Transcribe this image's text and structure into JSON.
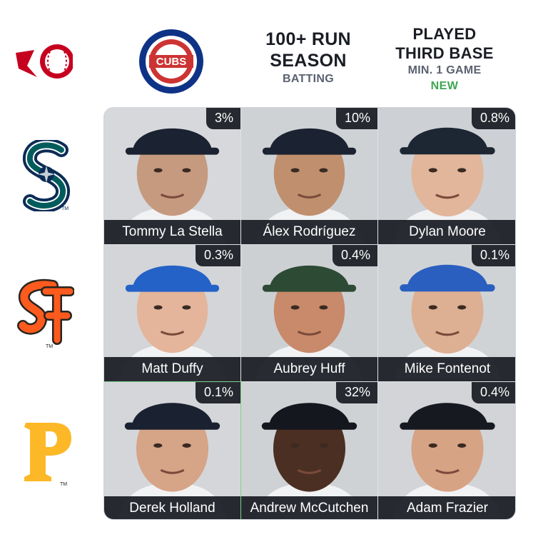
{
  "headers": {
    "col1_team": "Chicago Cubs",
    "col1_logo_text": "CUBS",
    "col2": {
      "line1": "100+ RUN",
      "line2": "SEASON",
      "sub": "BATTING"
    },
    "col3": {
      "line1": "PLAYED",
      "line2": "THIRD BASE",
      "sub": "MIN. 1 GAME",
      "badge": "NEW"
    }
  },
  "rows": [
    {
      "team": "Seattle Mariners",
      "logo": "mariners-logo"
    },
    {
      "team": "San Francisco Giants",
      "logo": "giants-logo"
    },
    {
      "team": "Pittsburgh Pirates",
      "logo": "pirates-logo"
    }
  ],
  "cells": [
    {
      "name": "Tommy La Stella",
      "pct": "3%",
      "cap": "#1b2231",
      "skin": "#c59a7f",
      "bg": "#d6d8db"
    },
    {
      "name": "Álex Rodríguez",
      "pct": "10%",
      "cap": "#1b2231",
      "skin": "#c08f6e",
      "bg": "#cfd2d5"
    },
    {
      "name": "Dylan Moore",
      "pct": "0.8%",
      "cap": "#1d2733",
      "skin": "#e2b69a",
      "bg": "#cdd0d4"
    },
    {
      "name": "Matt Duffy",
      "pct": "0.3%",
      "cap": "#2462c7",
      "skin": "#e4b59b",
      "bg": "#d3d5d8"
    },
    {
      "name": "Aubrey Huff",
      "pct": "0.4%",
      "cap": "#2d4a35",
      "skin": "#c88a6a",
      "bg": "#cdd0d3"
    },
    {
      "name": "Mike Fontenot",
      "pct": "0.1%",
      "cap": "#2a5fbf",
      "skin": "#ddb093",
      "bg": "#d0d3d6"
    },
    {
      "name": "Derek Holland",
      "pct": "0.1%",
      "cap": "#1a2130",
      "skin": "#d6a487",
      "bg": "#d4d6d9"
    },
    {
      "name": "Andrew McCutchen",
      "pct": "32%",
      "cap": "#14171d",
      "skin": "#4b2f22",
      "bg": "#cfd2d5"
    },
    {
      "name": "Adam Frazier",
      "pct": "0.4%",
      "cap": "#161a20",
      "skin": "#d7a385",
      "bg": "#d2d4d7"
    }
  ],
  "colors": {
    "cubs_blue": "#0e3386",
    "cubs_red": "#cc3433",
    "mariners_navy": "#0c2c56",
    "mariners_teal": "#005c5c",
    "giants_orange": "#fd5a1e",
    "pirates_gold": "#fdb827",
    "reds_red": "#c6011f",
    "selected_outline": "#7ed08c",
    "new_badge": "#3fa653"
  }
}
